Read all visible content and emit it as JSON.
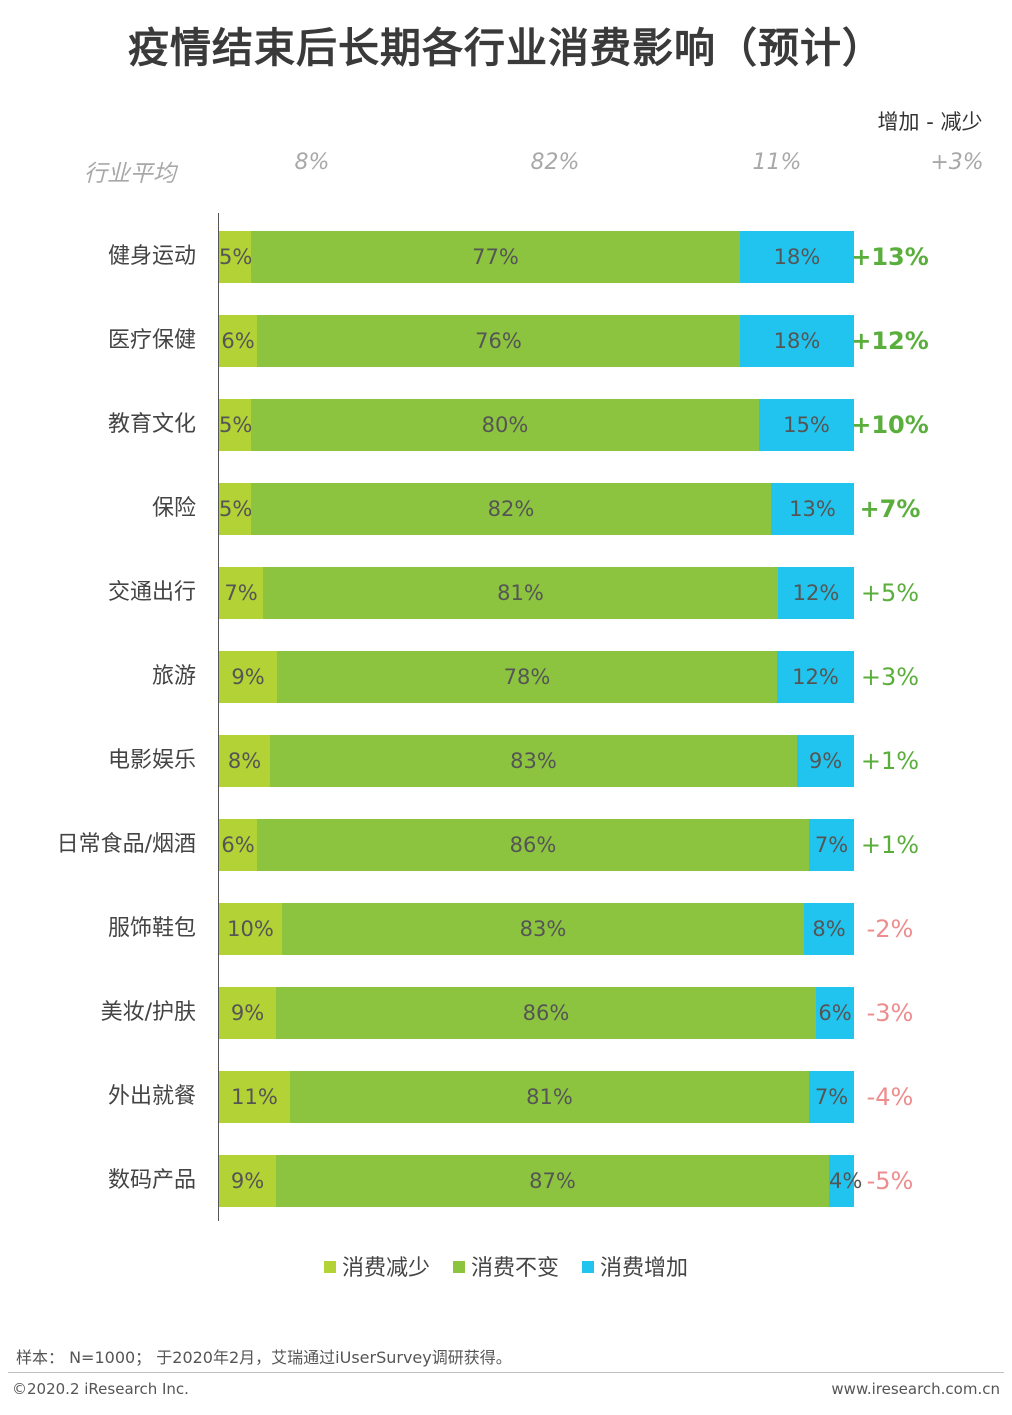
{
  "chart_data": {
    "type": "bar",
    "orientation": "horizontal",
    "stacked": true,
    "title": "疫情结束后长期各行业消费影响（预计）",
    "net_header": "增加 - 减少",
    "average": {
      "label": "行业平均",
      "values": [
        "8%",
        "82%",
        "11%"
      ],
      "net": "+3%"
    },
    "categories": [
      "健身运动",
      "医疗保健",
      "教育文化",
      "保险",
      "交通出行",
      "旅游",
      "电影娱乐",
      "日常食品/烟酒",
      "服饰鞋包",
      "美妆/护肤",
      "外出就餐",
      "数码产品"
    ],
    "series": [
      {
        "name": "消费减少",
        "color": "#b3d236",
        "values": [
          5,
          6,
          5,
          5,
          7,
          9,
          8,
          6,
          10,
          9,
          11,
          9
        ]
      },
      {
        "name": "消费不变",
        "color": "#8cc43f",
        "values": [
          77,
          76,
          80,
          82,
          81,
          78,
          83,
          86,
          83,
          86,
          81,
          87
        ]
      },
      {
        "name": "消费增加",
        "color": "#21c4ee",
        "values": [
          18,
          18,
          15,
          13,
          12,
          12,
          9,
          7,
          8,
          6,
          7,
          4
        ]
      }
    ],
    "net": [
      "+13%",
      "+12%",
      "+10%",
      "+7%",
      "+5%",
      "+3%",
      "+1%",
      "+1%",
      "-2%",
      "-3%",
      "-4%",
      "-5%"
    ],
    "net_bold": [
      true,
      true,
      true,
      true,
      false,
      false,
      false,
      false,
      false,
      false,
      false,
      false
    ],
    "colors": {
      "positive": "#5aae3c",
      "negative": "#ee8d8d"
    }
  },
  "footer": {
    "note": "样本： N=1000； 于2020年2月，艾瑞通过iUserSurvey调研获得。",
    "copyright": "©2020.2 iResearch Inc.",
    "website": "www.iresearch.com.cn"
  }
}
